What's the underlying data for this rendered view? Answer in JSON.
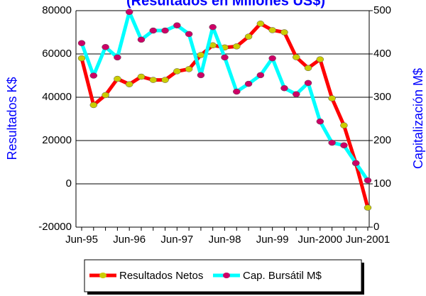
{
  "chart_data": {
    "type": "line",
    "title": "(Resultados en Millones US$)",
    "ylabel": "Resultados K$",
    "y2label": "Capitalización M$",
    "categories": [
      "Jun-95",
      null,
      null,
      null,
      "Jun-96",
      null,
      null,
      null,
      "Jun-97",
      null,
      null,
      null,
      "Jun-98",
      null,
      null,
      null,
      "Jun-99",
      null,
      null,
      null,
      "Jun-2000",
      null,
      null,
      null,
      "Jun-2001"
    ],
    "series": [
      {
        "name": "Resultados Netos",
        "color": "#ff0000",
        "marker_color": "#cccc00",
        "values": [
          58000,
          36400,
          41000,
          48500,
          46000,
          49500,
          48000,
          48000,
          52000,
          53000,
          59500,
          64000,
          63000,
          63500,
          68000,
          74000,
          71000,
          70000,
          58500,
          53500,
          57500,
          39500,
          27000,
          9500,
          -11000
        ]
      },
      {
        "name": "Cap. Bursátil M$",
        "color": "#00ffff",
        "marker_color": "#cc0066",
        "axis": "y2",
        "values": [
          425,
          350,
          416,
          392,
          497,
          433,
          454,
          454,
          466,
          446,
          351,
          462,
          392,
          313,
          331,
          351,
          390,
          321,
          307,
          333,
          244,
          195,
          189,
          148,
          108
        ]
      }
    ],
    "ylim": [
      -20000,
      80000
    ],
    "yticks": [
      -20000,
      0,
      20000,
      40000,
      60000,
      80000
    ],
    "y2lim": [
      0,
      500
    ],
    "y2ticks": [
      0,
      100,
      200,
      300,
      400,
      500
    ],
    "grid": true,
    "legend": "bottom"
  }
}
